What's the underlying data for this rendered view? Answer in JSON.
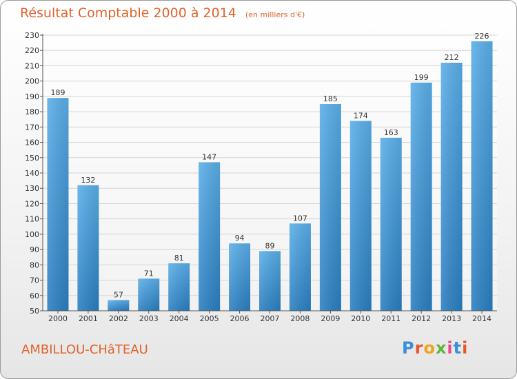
{
  "title": "Résultat Comptable 2000 à 2014",
  "subtitle": "(en milliers d'€)",
  "location": "AMBILLOU-CHâTEAU",
  "brand": "Proxiti",
  "colors": {
    "title": "#e0622a",
    "bar_light": "#5aaee8",
    "bar_dark": "#2a7ec0"
  },
  "chart_data": {
    "type": "bar",
    "categories": [
      "2000",
      "2001",
      "2002",
      "2003",
      "2004",
      "2005",
      "2006",
      "2007",
      "2008",
      "2009",
      "2010",
      "2011",
      "2012",
      "2013",
      "2014"
    ],
    "values": [
      189,
      132,
      57,
      71,
      81,
      147,
      94,
      89,
      107,
      185,
      174,
      163,
      199,
      212,
      226
    ],
    "ylim": [
      50,
      230
    ],
    "yticks": [
      50,
      60,
      70,
      80,
      90,
      100,
      110,
      120,
      130,
      140,
      150,
      160,
      170,
      180,
      190,
      200,
      210,
      220,
      230
    ],
    "grid": true,
    "legend": "none"
  }
}
